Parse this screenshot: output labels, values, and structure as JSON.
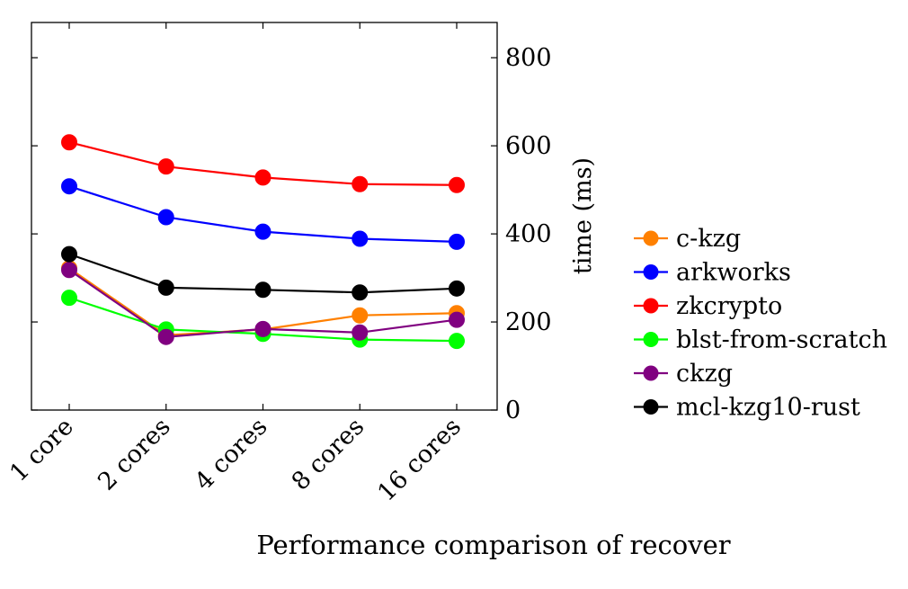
{
  "chart_data": {
    "type": "line",
    "caption": "Performance comparison of recover",
    "xlabel": "",
    "ylabel": "time (ms)",
    "ylim": [
      0,
      880
    ],
    "yticks": [
      0,
      200,
      400,
      600,
      800
    ],
    "categories": [
      "1 core",
      "2 cores",
      "4 cores",
      "8 cores",
      "16 cores"
    ],
    "grid": false,
    "legend_position": "right",
    "series": [
      {
        "name": "c-kzg",
        "color": "#ff8000",
        "values": [
          322,
          170,
          183,
          215,
          220
        ]
      },
      {
        "name": "arkworks",
        "color": "#0000ff",
        "values": [
          508,
          438,
          405,
          389,
          382
        ]
      },
      {
        "name": "zkcrypto",
        "color": "#ff0000",
        "values": [
          608,
          553,
          528,
          513,
          511
        ]
      },
      {
        "name": "blst-from-scratch",
        "color": "#00ff00",
        "values": [
          255,
          183,
          173,
          160,
          157
        ]
      },
      {
        "name": "ckzg",
        "color": "#800080",
        "values": [
          318,
          166,
          184,
          176,
          205
        ]
      },
      {
        "name": "mcl-kzg10-rust",
        "color": "#000000",
        "values": [
          354,
          278,
          273,
          267,
          276
        ]
      }
    ]
  }
}
